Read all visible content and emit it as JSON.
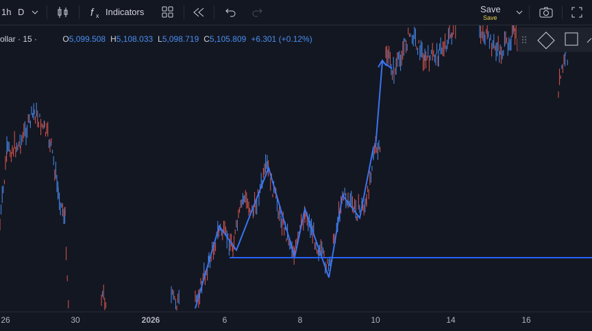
{
  "toolbar": {
    "interval": "1h",
    "interval2": "D",
    "indicators": "Indicators",
    "save": "Save",
    "save_sub": "Save"
  },
  "legend": {
    "symbol": "ollar · 15 ·",
    "ohlc": [
      {
        "label": "O",
        "value": "5,099.508"
      },
      {
        "label": "H",
        "value": "5,108.033"
      },
      {
        "label": "L",
        "value": "5,098.719"
      },
      {
        "label": "C",
        "value": "5,105.809"
      }
    ],
    "change": "+6.301 (+0.12%)"
  },
  "time_axis": {
    "labels": [
      "26",
      "30",
      "2026",
      "6",
      "8",
      "10",
      "14",
      "16"
    ]
  }
}
